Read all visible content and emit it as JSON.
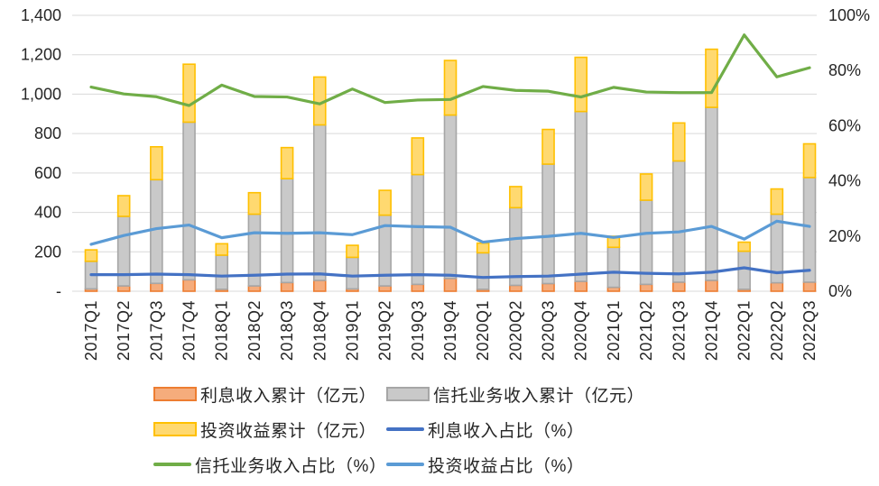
{
  "chart_data": {
    "type": "combo-stacked-bar-line",
    "categories": [
      "2017Q1",
      "2017Q2",
      "2017Q3",
      "2017Q4",
      "2018Q1",
      "2018Q2",
      "2018Q3",
      "2018Q4",
      "2019Q1",
      "2019Q2",
      "2019Q3",
      "2019Q4",
      "2020Q1",
      "2020Q2",
      "2020Q3",
      "2020Q4",
      "2021Q1",
      "2021Q2",
      "2021Q3",
      "2021Q4",
      "2022Q1",
      "2022Q2",
      "2022Q3"
    ],
    "bar_series": [
      {
        "key": "interest-income",
        "label": "利息收入累计（亿元）",
        "fill": "#F5AC7C",
        "stroke": "#ED7D31",
        "values": [
          12,
          27,
          40,
          58,
          10,
          27,
          44,
          55,
          12,
          27,
          35,
          65,
          10,
          30,
          39,
          50,
          20,
          35,
          46,
          55,
          10,
          43,
          46
        ]
      },
      {
        "key": "trust-income",
        "label": "信托业务收入累计（亿元）",
        "fill": "#C9C9C9",
        "stroke": "#A6A6A6",
        "values": [
          140,
          353,
          526,
          800,
          173,
          364,
          527,
          789,
          160,
          359,
          557,
          829,
          185,
          394,
          606,
          862,
          203,
          427,
          615,
          878,
          193,
          348,
          531
        ]
      },
      {
        "key": "investment-income",
        "label": "投资收益累计（亿元）",
        "fill": "#FFD970",
        "stroke": "#FFC000",
        "values": [
          58,
          105,
          167,
          294,
          58,
          109,
          158,
          243,
          61,
          126,
          186,
          277,
          49,
          107,
          176,
          275,
          56,
          133,
          193,
          295,
          46,
          128,
          171
        ]
      }
    ],
    "line_series": [
      {
        "key": "interest-pct",
        "label": "利息收入占比（%）",
        "color": "#4472C4",
        "values": [
          6,
          6,
          6.2,
          6,
          5.5,
          5.8,
          6.2,
          6.3,
          5.5,
          5.8,
          6,
          5.8,
          5,
          5.3,
          5.5,
          6.2,
          6.9,
          6.5,
          6.3,
          6.9,
          8.5,
          6.7,
          7.6
        ]
      },
      {
        "key": "trust-pct",
        "label": "信托业务收入占比（%）",
        "color": "#70AD47",
        "values": [
          74,
          71.5,
          70.5,
          67.3,
          74.7,
          70.6,
          70.4,
          67.9,
          73.3,
          68.4,
          69.3,
          69.5,
          74.2,
          72.8,
          72.5,
          70.4,
          73.9,
          72.2,
          72,
          72,
          92.9,
          77.7,
          81
        ]
      },
      {
        "key": "investment-pct",
        "label": "投资收益占比（%）",
        "color": "#5B9BD5",
        "values": [
          17,
          20.2,
          22.7,
          24,
          19.4,
          21.2,
          21,
          21.2,
          20.5,
          23.8,
          23.4,
          23.2,
          17.8,
          19.1,
          19.9,
          21,
          19.5,
          21,
          21.5,
          23.5,
          18.9,
          25.4,
          23.5
        ]
      }
    ],
    "left_axis": {
      "min": 0,
      "max": 1400,
      "step": 200,
      "tick_labels": [
        "-",
        "200",
        "400",
        "600",
        "800",
        "1,000",
        "1,200",
        "1,400"
      ]
    },
    "right_axis": {
      "min": 0,
      "max": 100,
      "step": 20,
      "tick_labels": [
        "0%",
        "20%",
        "40%",
        "60%",
        "80%",
        "100%"
      ]
    },
    "grid": true,
    "gridline_color": "#D9D9D9",
    "text_color": "#262626",
    "legend_position": "bottom"
  }
}
